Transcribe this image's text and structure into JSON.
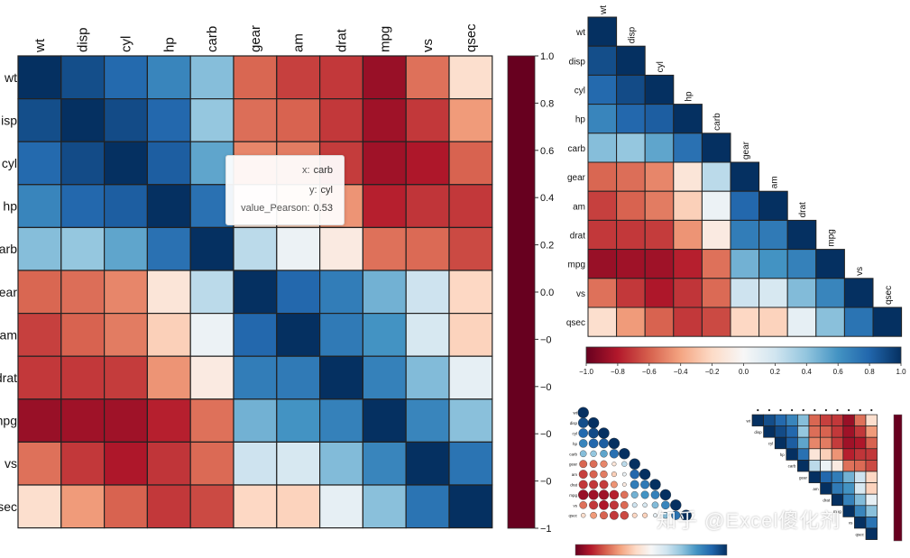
{
  "chart_data": [
    {
      "type": "heatmap",
      "title": "",
      "variables": [
        "wt",
        "disp",
        "cyl",
        "hp",
        "carb",
        "gear",
        "am",
        "drat",
        "mpg",
        "vs",
        "qsec"
      ],
      "x_categories": [
        "wt",
        "disp",
        "cyl",
        "hp",
        "carb",
        "gear",
        "am",
        "drat",
        "mpg",
        "vs",
        "qsec"
      ],
      "y_categories": [
        "wt",
        "disp",
        "cyl",
        "hp",
        "carb",
        "gear",
        "am",
        "drat",
        "mpg",
        "vs",
        "qsec"
      ],
      "y_tick_labels": [
        "wt",
        "isp",
        "cyl",
        "hp",
        "arb",
        "ear",
        "am",
        "drat",
        "npg",
        "vs",
        "sec"
      ],
      "values": [
        [
          1.0,
          0.89,
          0.78,
          0.66,
          0.43,
          -0.58,
          -0.69,
          -0.71,
          -0.87,
          -0.55,
          -0.17
        ],
        [
          0.89,
          1.0,
          0.9,
          0.79,
          0.39,
          -0.56,
          -0.59,
          -0.71,
          -0.85,
          -0.71,
          -0.43
        ],
        [
          0.78,
          0.9,
          1.0,
          0.83,
          0.53,
          -0.49,
          -0.52,
          -0.7,
          -0.85,
          -0.81,
          -0.59
        ],
        [
          0.66,
          0.79,
          0.83,
          1.0,
          0.75,
          -0.13,
          -0.24,
          -0.45,
          -0.78,
          -0.72,
          -0.71
        ],
        [
          0.43,
          0.39,
          0.53,
          0.75,
          1.0,
          0.27,
          0.06,
          -0.09,
          -0.55,
          -0.57,
          -0.66
        ],
        [
          -0.58,
          -0.56,
          -0.49,
          -0.13,
          0.27,
          1.0,
          0.79,
          0.7,
          0.48,
          0.21,
          -0.21
        ],
        [
          -0.69,
          -0.59,
          -0.52,
          -0.24,
          0.06,
          0.79,
          1.0,
          0.71,
          0.6,
          0.17,
          -0.23
        ],
        [
          -0.71,
          -0.71,
          -0.7,
          -0.45,
          -0.09,
          0.7,
          0.71,
          1.0,
          0.68,
          0.44,
          0.09
        ],
        [
          -0.87,
          -0.85,
          -0.85,
          -0.78,
          -0.55,
          0.48,
          0.6,
          0.68,
          1.0,
          0.66,
          0.42
        ],
        [
          -0.55,
          -0.71,
          -0.81,
          -0.72,
          -0.57,
          0.21,
          0.17,
          0.44,
          0.66,
          1.0,
          0.74
        ],
        [
          -0.17,
          -0.43,
          -0.59,
          -0.71,
          -0.66,
          -0.21,
          -0.23,
          0.09,
          0.42,
          0.74,
          1.0
        ]
      ],
      "colorbar": {
        "range": [
          -1,
          1
        ],
        "tick_values": [
          1.0,
          0.8,
          0.6,
          0.4,
          0.2,
          0.0,
          -0.2,
          -0.4,
          -0.6,
          -0.8,
          -1.0
        ],
        "tick_labels": [
          "1.0",
          "0.8",
          "0.6",
          "0.4",
          "0.2",
          "0.0",
          "−0",
          "−0",
          "−0",
          "−0",
          "−1"
        ]
      },
      "tooltip": {
        "x_key": "x:",
        "x_value": "carb",
        "y_key": "y:",
        "y_value": "cyl",
        "value_key": "value_Pearson:",
        "value": "0.53"
      }
    },
    {
      "type": "heatmap",
      "title": "",
      "layout": "lower-triangle",
      "variables": [
        "wt",
        "disp",
        "cyl",
        "hp",
        "carb",
        "gear",
        "am",
        "drat",
        "mpg",
        "vs",
        "qsec"
      ],
      "colorbar": {
        "range": [
          -1,
          1
        ],
        "tick_values": [
          -1.0,
          -0.8,
          -0.6,
          -0.4,
          -0.2,
          0.0,
          0.2,
          0.4,
          0.6,
          0.8,
          1.0
        ],
        "tick_labels": [
          "−1.0",
          "−0.8",
          "−0.6",
          "−0.4",
          "−0.2",
          "0.0",
          "0.2",
          "0.4",
          "0.6",
          "0.8",
          "1.0"
        ]
      }
    },
    {
      "type": "scatter",
      "title": "",
      "layout": "lower-triangle-circles",
      "variables": [
        "wt",
        "disp",
        "cyl",
        "hp",
        "carb",
        "gear",
        "am",
        "drat",
        "mpg",
        "vs",
        "qsec"
      ],
      "colorbar": {
        "range": [
          -1,
          1
        ]
      }
    },
    {
      "type": "heatmap",
      "title": "",
      "layout": "upper-triangle",
      "variables": [
        "wt",
        "disp",
        "cyl",
        "hp",
        "carb",
        "gear",
        "am",
        "drat",
        "mpg",
        "vs",
        "qsec"
      ],
      "colorbar": {
        "range": [
          -1,
          1
        ]
      }
    }
  ],
  "watermark": "知乎 @Excel傻化剂",
  "colors": {
    "stops": [
      "#67001f",
      "#b2182b",
      "#d6604d",
      "#f4a582",
      "#fddbc7",
      "#f7f7f7",
      "#d1e5f0",
      "#92c5de",
      "#4393c3",
      "#2166ac",
      "#053061"
    ],
    "grid": "#222222",
    "axis_text": "#111111"
  }
}
